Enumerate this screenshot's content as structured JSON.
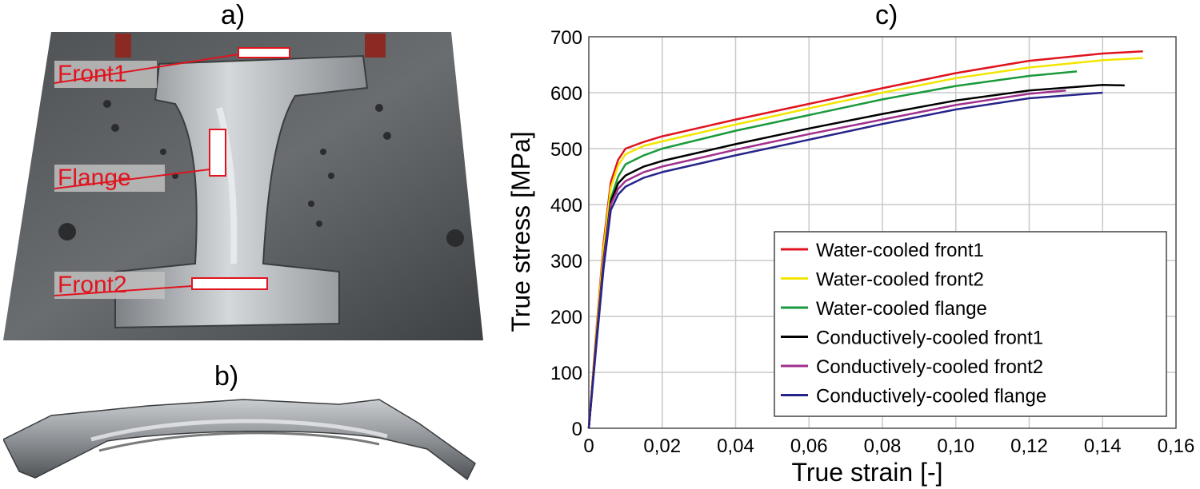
{
  "panels": {
    "a": {
      "label": "a)",
      "callouts": [
        "Front1",
        "Flange",
        "Front2"
      ]
    },
    "b": {
      "label": "b)"
    },
    "c": {
      "label": "c)"
    }
  },
  "colors": {
    "callout": "#e0141e",
    "die_dark": "#5b5e60",
    "die_light": "#b8bcbf"
  },
  "chart_data": {
    "type": "line",
    "title": "",
    "xlabel": "True strain [-]",
    "ylabel": "True stress [MPa]",
    "xlim": [
      0,
      0.16
    ],
    "ylim": [
      0,
      700
    ],
    "xticks": [
      "0",
      "0,02",
      "0,04",
      "0,06",
      "0,08",
      "0,10",
      "0,12",
      "0,14",
      "0,16"
    ],
    "yticks": [
      "0",
      "100",
      "200",
      "300",
      "400",
      "500",
      "600",
      "700"
    ],
    "grid": true,
    "legend_position": "bottom-right",
    "series": [
      {
        "name": "Water-cooled front1",
        "color": "#e0141e",
        "points": [
          [
            0,
            0
          ],
          [
            0.002,
            170
          ],
          [
            0.004,
            330
          ],
          [
            0.006,
            440
          ],
          [
            0.008,
            480
          ],
          [
            0.01,
            500
          ],
          [
            0.015,
            512
          ],
          [
            0.02,
            522
          ],
          [
            0.04,
            552
          ],
          [
            0.06,
            580
          ],
          [
            0.08,
            608
          ],
          [
            0.1,
            635
          ],
          [
            0.12,
            657
          ],
          [
            0.14,
            670
          ],
          [
            0.151,
            674
          ]
        ]
      },
      {
        "name": "Water-cooled front2",
        "color": "#f2e600",
        "points": [
          [
            0,
            0
          ],
          [
            0.002,
            165
          ],
          [
            0.004,
            320
          ],
          [
            0.006,
            430
          ],
          [
            0.008,
            470
          ],
          [
            0.01,
            490
          ],
          [
            0.015,
            505
          ],
          [
            0.02,
            513
          ],
          [
            0.04,
            543
          ],
          [
            0.06,
            572
          ],
          [
            0.08,
            600
          ],
          [
            0.1,
            626
          ],
          [
            0.12,
            645
          ],
          [
            0.14,
            658
          ],
          [
            0.151,
            662
          ]
        ]
      },
      {
        "name": "Water-cooled flange",
        "color": "#1a9a3c",
        "points": [
          [
            0,
            0
          ],
          [
            0.002,
            150
          ],
          [
            0.004,
            300
          ],
          [
            0.006,
            410
          ],
          [
            0.008,
            450
          ],
          [
            0.01,
            472
          ],
          [
            0.015,
            488
          ],
          [
            0.02,
            500
          ],
          [
            0.04,
            532
          ],
          [
            0.06,
            560
          ],
          [
            0.08,
            588
          ],
          [
            0.1,
            612
          ],
          [
            0.12,
            630
          ],
          [
            0.133,
            638
          ]
        ]
      },
      {
        "name": "Conductively-cooled front1",
        "color": "#000000",
        "points": [
          [
            0,
            0
          ],
          [
            0.002,
            155
          ],
          [
            0.004,
            300
          ],
          [
            0.006,
            405
          ],
          [
            0.008,
            438
          ],
          [
            0.01,
            452
          ],
          [
            0.015,
            468
          ],
          [
            0.02,
            478
          ],
          [
            0.04,
            508
          ],
          [
            0.06,
            536
          ],
          [
            0.08,
            562
          ],
          [
            0.1,
            586
          ],
          [
            0.12,
            604
          ],
          [
            0.14,
            614
          ],
          [
            0.146,
            613
          ]
        ]
      },
      {
        "name": "Conductively-cooled front2",
        "color": "#a0308c",
        "points": [
          [
            0,
            0
          ],
          [
            0.002,
            150
          ],
          [
            0.004,
            295
          ],
          [
            0.006,
            400
          ],
          [
            0.008,
            428
          ],
          [
            0.01,
            442
          ],
          [
            0.015,
            458
          ],
          [
            0.02,
            468
          ],
          [
            0.04,
            498
          ],
          [
            0.06,
            526
          ],
          [
            0.08,
            552
          ],
          [
            0.1,
            578
          ],
          [
            0.12,
            598
          ],
          [
            0.13,
            604
          ]
        ]
      },
      {
        "name": "Conductively-cooled flange",
        "color": "#26248a",
        "points": [
          [
            0,
            0
          ],
          [
            0.002,
            145
          ],
          [
            0.004,
            285
          ],
          [
            0.006,
            390
          ],
          [
            0.008,
            418
          ],
          [
            0.01,
            432
          ],
          [
            0.015,
            448
          ],
          [
            0.02,
            458
          ],
          [
            0.04,
            488
          ],
          [
            0.06,
            516
          ],
          [
            0.08,
            544
          ],
          [
            0.1,
            570
          ],
          [
            0.12,
            590
          ],
          [
            0.14,
            600
          ]
        ]
      }
    ]
  }
}
